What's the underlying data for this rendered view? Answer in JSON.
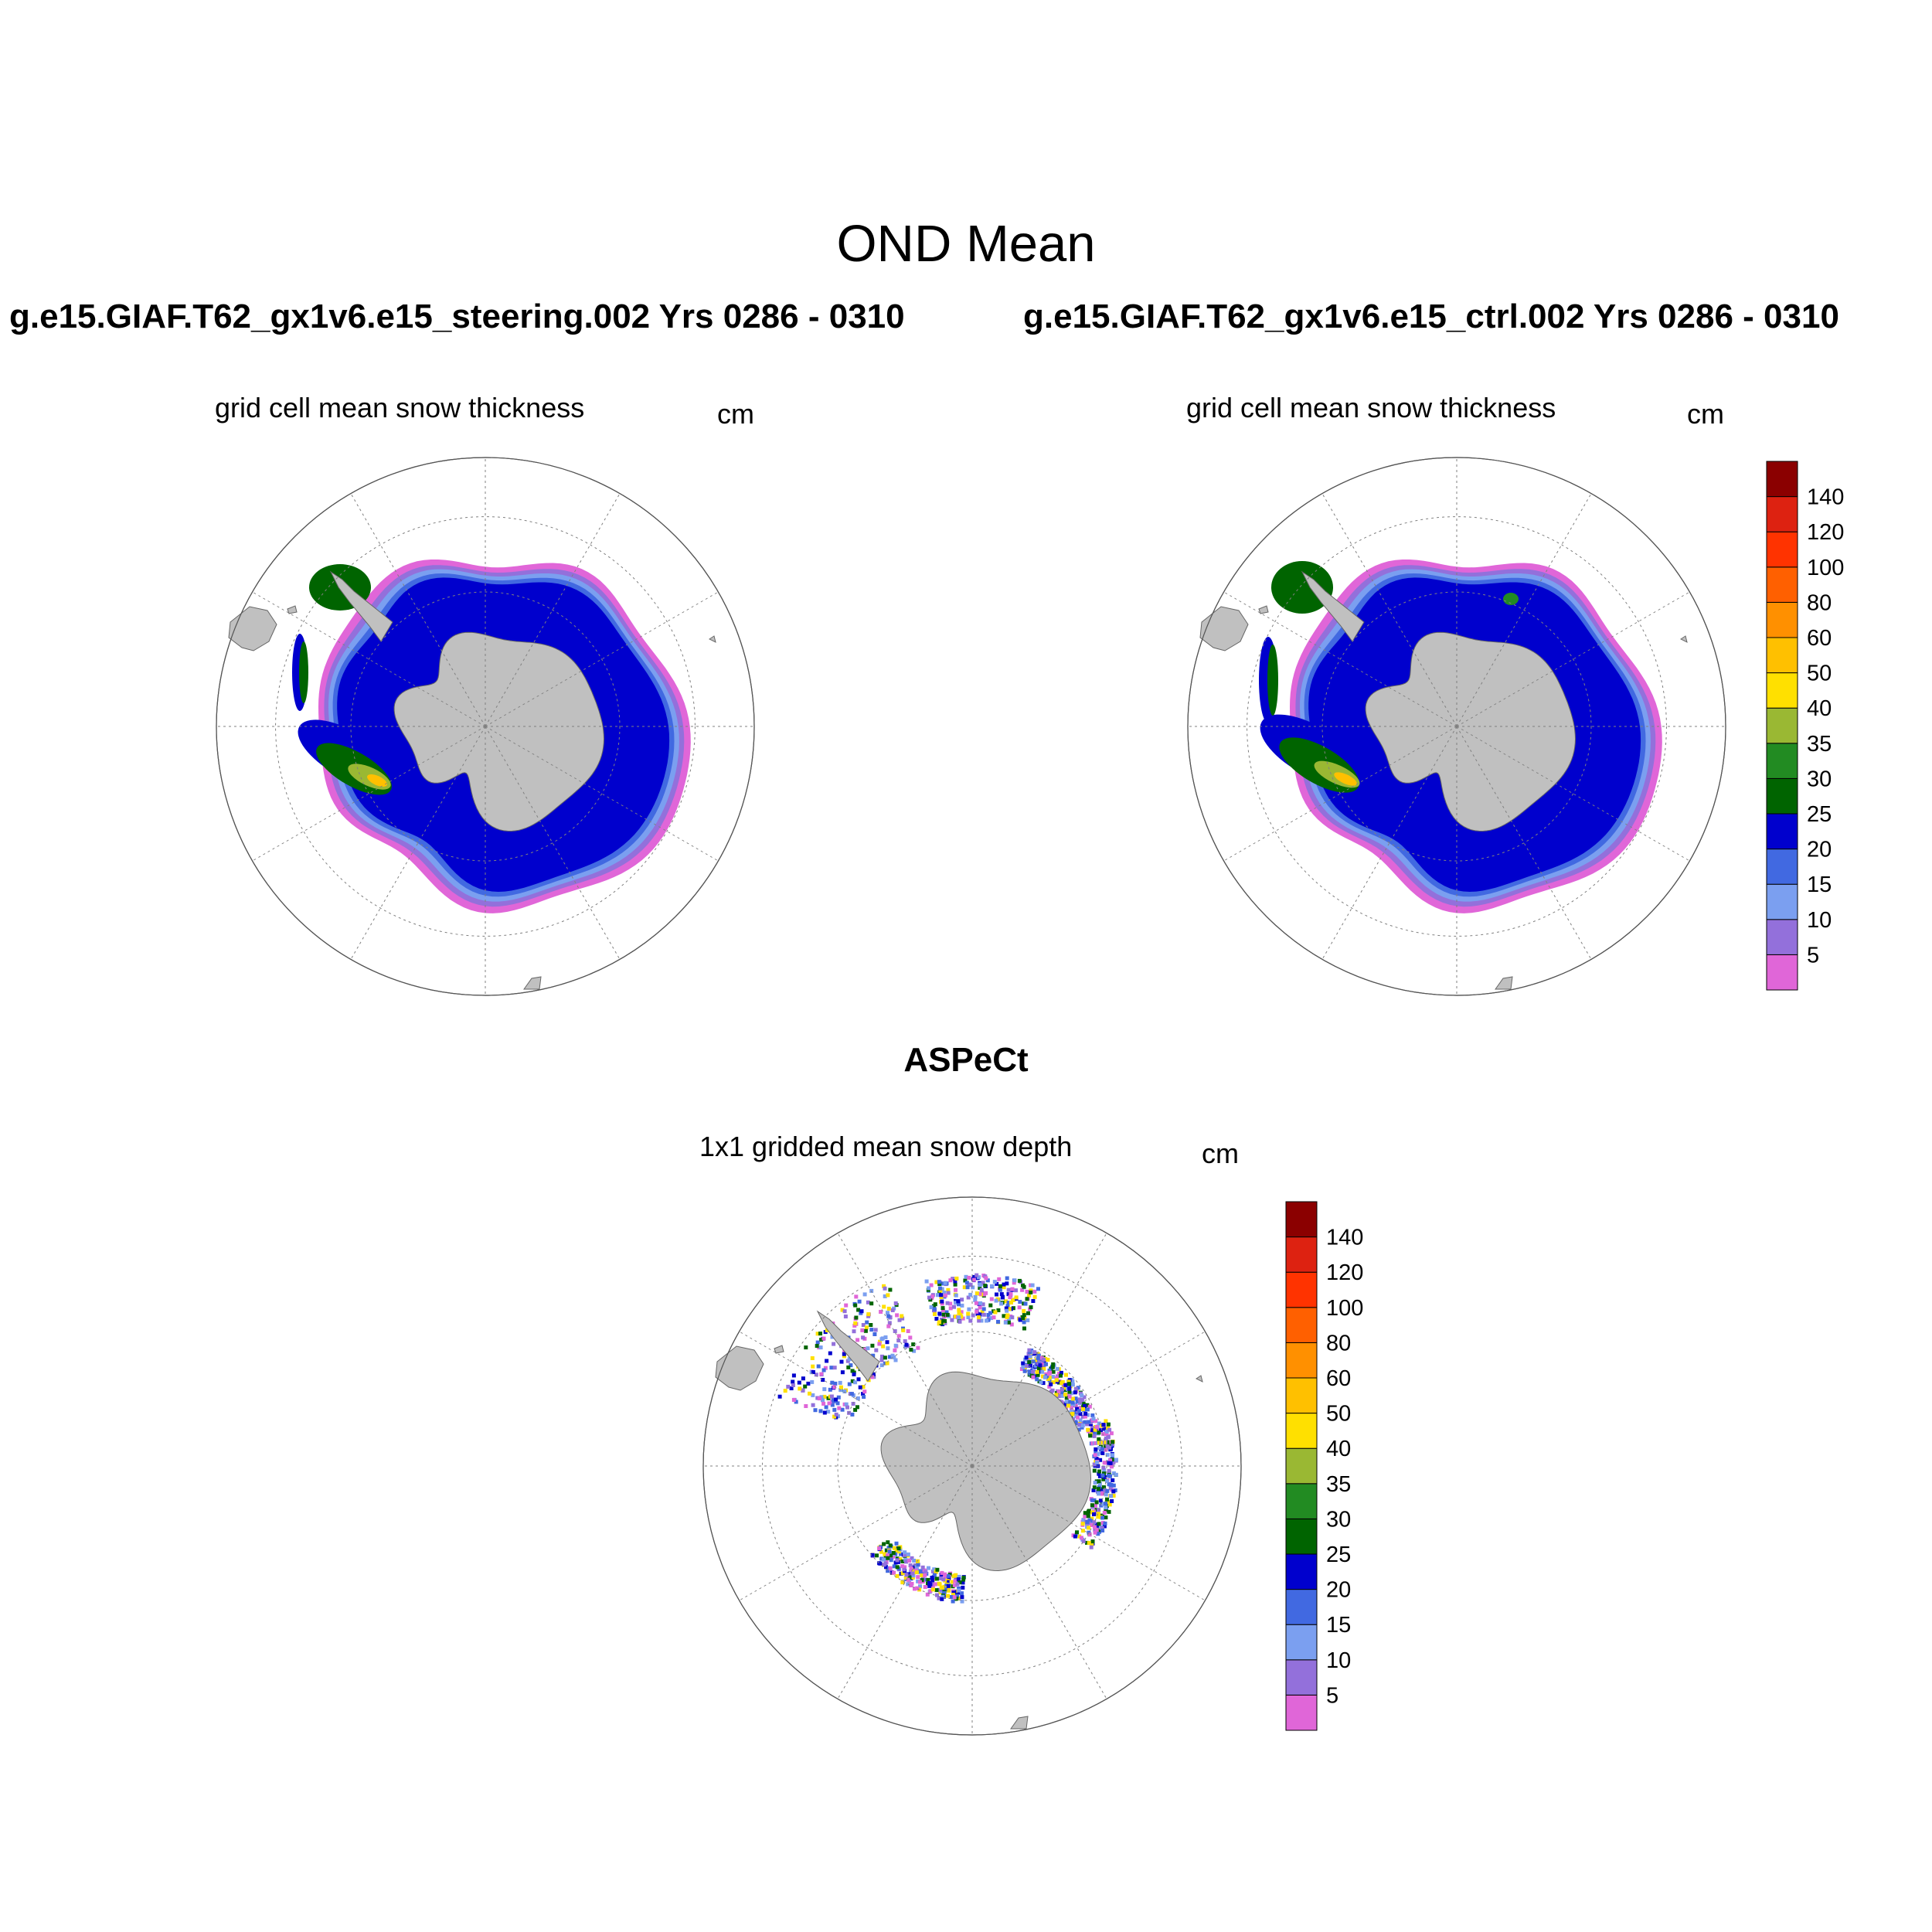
{
  "title": "OND Mean",
  "panels": [
    {
      "run": "g.e15.GIAF.T62_gx1v6.e15_steering.002  Yrs 0286 - 0310",
      "left_label": "grid cell mean snow thickness",
      "right_label": "cm"
    },
    {
      "run": "g.e15.GIAF.T62_gx1v6.e15_ctrl.002  Yrs 0286 - 0310",
      "left_label": "grid cell mean snow thickness",
      "right_label": "cm"
    }
  ],
  "observation": {
    "title": "ASPeCt",
    "left_label": "1x1 gridded mean snow depth",
    "right_label": "cm"
  },
  "colorbar": {
    "labels": [
      "5",
      "10",
      "15",
      "20",
      "25",
      "30",
      "35",
      "40",
      "50",
      "60",
      "80",
      "100",
      "120",
      "140"
    ],
    "colors": [
      "#e066d8",
      "#9370db",
      "#7b9ff0",
      "#4169e1",
      "#0000cd",
      "#006400",
      "#228b22",
      "#9ab833",
      "#ffe000",
      "#ffc000",
      "#ff9000",
      "#ff6000",
      "#ff3300",
      "#dd2211",
      "#8b0000"
    ]
  },
  "map_colors": {
    "land": "#c0c0c0",
    "grid": "#808080"
  }
}
